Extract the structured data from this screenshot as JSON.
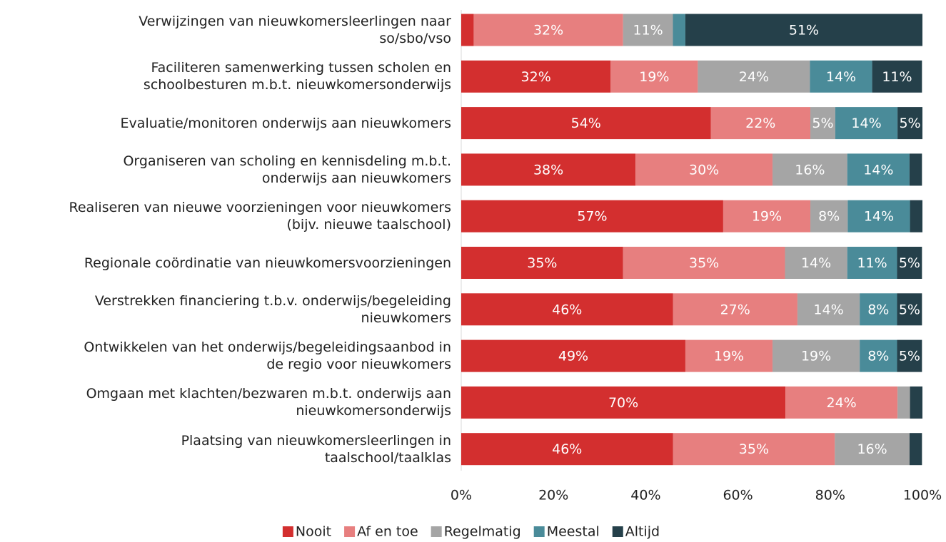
{
  "chart_data": {
    "type": "stacked_barh",
    "categories": [
      "Verwijzingen van nieuwkomersleerlingen naar\nso/sbo/vso",
      "Faciliteren samenwerking tussen scholen en\nschoolbesturen m.b.t. nieuwkomersonderwijs",
      "Evaluatie/monitoren onderwijs aan nieuwkomers",
      "Organiseren van scholing en kennisdeling m.b.t.\nonderwijs aan nieuwkomers",
      "Realiseren van nieuwe voorzieningen voor nieuwkomers\n(bijv. nieuwe taalschool)",
      "Regionale coördinatie van nieuwkomersvoorzieningen",
      "Verstrekken financiering t.b.v. onderwijs/begeleiding\nnieuwkomers",
      "Ontwikkelen van het onderwijs/begeleidingsaanbod in\nde regio voor nieuwkomers",
      "Omgaan met klachten/bezwaren m.b.t. onderwijs aan\nnieuwkomersonderwijs",
      "Plaatsing van nieuwkomersleerlingen in\ntaalschool/taalklas"
    ],
    "series": [
      {
        "name": "Nooit",
        "color": "#d32f2f",
        "values": [
          2.7,
          32.4,
          54.1,
          37.8,
          56.8,
          35.1,
          45.9,
          48.6,
          70.3,
          45.9
        ],
        "value_labels": [
          null,
          "32%",
          "54%",
          "38%",
          "57%",
          "35%",
          "46%",
          "49%",
          "70%",
          "46%"
        ]
      },
      {
        "name": "Af en toe",
        "color": "#e77f7f",
        "values": [
          32.4,
          18.9,
          21.6,
          29.7,
          18.9,
          35.1,
          27.0,
          18.9,
          24.3,
          35.1
        ],
        "value_labels": [
          "32%",
          "19%",
          "22%",
          "30%",
          "19%",
          "35%",
          "27%",
          "19%",
          "24%",
          "35%"
        ]
      },
      {
        "name": "Regelmatig",
        "color": "#a5a5a5",
        "values": [
          10.8,
          24.3,
          5.4,
          16.2,
          8.1,
          13.5,
          13.5,
          18.9,
          2.7,
          16.2
        ],
        "value_labels": [
          "11%",
          "24%",
          "5%",
          "16%",
          "8%",
          "14%",
          "14%",
          "19%",
          null,
          "16%"
        ]
      },
      {
        "name": "Meestal",
        "color": "#4a8b99",
        "values": [
          2.7,
          13.5,
          13.5,
          13.5,
          13.5,
          10.8,
          8.1,
          8.1,
          0,
          0
        ],
        "value_labels": [
          null,
          "14%",
          "14%",
          "14%",
          "14%",
          "11%",
          "8%",
          "8%",
          null,
          null
        ]
      },
      {
        "name": "Altijd",
        "color": "#25404a",
        "values": [
          51.4,
          10.8,
          5.4,
          2.7,
          2.7,
          5.4,
          5.4,
          5.4,
          2.7,
          2.7
        ],
        "value_labels": [
          "51%",
          "11%",
          "5%",
          null,
          null,
          "5%",
          "5%",
          "5%",
          null,
          null
        ]
      }
    ],
    "xlim": [
      0,
      100
    ],
    "xticks": [
      {
        "value": 0,
        "label": "0%"
      },
      {
        "value": 20,
        "label": "20%"
      },
      {
        "value": 40,
        "label": "40%"
      },
      {
        "value": 60,
        "label": "60%"
      },
      {
        "value": 80,
        "label": "80%"
      },
      {
        "value": 100,
        "label": "100%"
      }
    ],
    "legend": "bottom"
  }
}
